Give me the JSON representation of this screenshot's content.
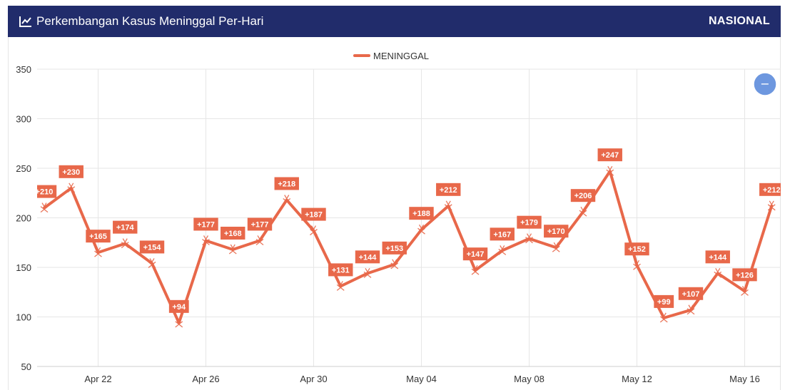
{
  "header": {
    "title": "Perkembangan Kasus Meninggal Per-Hari",
    "region": "NASIONAL",
    "icon": "line-chart-icon"
  },
  "zoom_button": {
    "symbol": "−",
    "icon": "zoom-out-icon",
    "color": "#6d97df"
  },
  "colors": {
    "header_bg": "#212c6b",
    "series": "#e8684a"
  },
  "chart_data": {
    "type": "line",
    "title": "Perkembangan Kasus Meninggal Per-Hari",
    "legend": [
      "MENINGGAL"
    ],
    "legend_position": "top-center",
    "grid": true,
    "ylim": [
      50,
      350
    ],
    "yticks": [
      50,
      100,
      150,
      200,
      250,
      300,
      350
    ],
    "xtick_labels": [
      "Apr 22",
      "Apr 26",
      "Apr 30",
      "May 04",
      "May 08",
      "May 12",
      "May 16"
    ],
    "series": [
      {
        "name": "MENINGGAL",
        "x": [
          "Apr 20",
          "Apr 21",
          "Apr 22",
          "Apr 23",
          "Apr 24",
          "Apr 25",
          "Apr 26",
          "Apr 27",
          "Apr 28",
          "Apr 29",
          "Apr 30",
          "May 01",
          "May 02",
          "May 03",
          "May 04",
          "May 05",
          "May 06",
          "May 07",
          "May 08",
          "May 09",
          "May 10",
          "May 11",
          "May 12",
          "May 13",
          "May 14",
          "May 15",
          "May 16",
          "May 17"
        ],
        "values": [
          210,
          230,
          165,
          174,
          154,
          94,
          177,
          168,
          177,
          218,
          187,
          131,
          144,
          153,
          188,
          212,
          147,
          167,
          179,
          170,
          206,
          247,
          152,
          99,
          107,
          144,
          126,
          212
        ],
        "labels": [
          "+210",
          "+230",
          "+165",
          "+174",
          "+154",
          "+94",
          "+177",
          "+168",
          "+177",
          "+218",
          "+187",
          "+131",
          "+144",
          "+153",
          "+188",
          "+212",
          "+147",
          "+167",
          "+179",
          "+170",
          "+206",
          "+247",
          "+152",
          "+99",
          "+107",
          "+144",
          "+126",
          "+212"
        ]
      }
    ]
  }
}
